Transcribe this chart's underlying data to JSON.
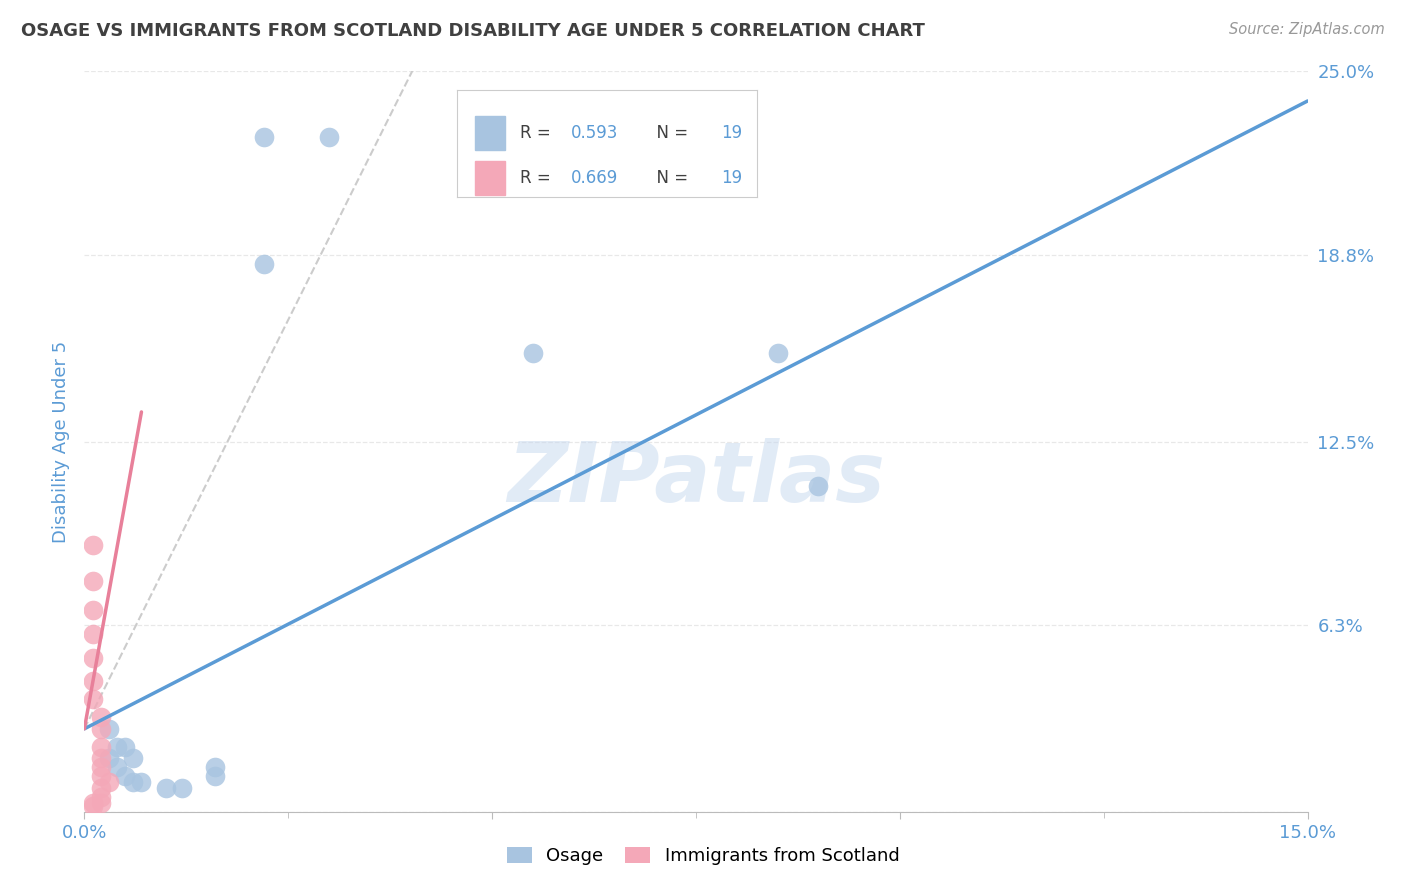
{
  "title": "OSAGE VS IMMIGRANTS FROM SCOTLAND DISABILITY AGE UNDER 5 CORRELATION CHART",
  "source": "Source: ZipAtlas.com",
  "ylabel_label": "Disability Age Under 5",
  "xlim": [
    0.0,
    0.15
  ],
  "ylim": [
    0.0,
    0.25
  ],
  "yticks": [
    0.0,
    0.063,
    0.125,
    0.188,
    0.25
  ],
  "yticklabels": [
    "",
    "6.3%",
    "12.5%",
    "18.8%",
    "25.0%"
  ],
  "xtick_major": [
    0.0,
    0.05,
    0.1,
    0.15
  ],
  "xticklabels": [
    "0.0%",
    "",
    "",
    "15.0%"
  ],
  "osage_scatter": [
    [
      0.022,
      0.228
    ],
    [
      0.03,
      0.228
    ],
    [
      0.022,
      0.185
    ],
    [
      0.003,
      0.028
    ],
    [
      0.004,
      0.022
    ],
    [
      0.005,
      0.022
    ],
    [
      0.006,
      0.018
    ],
    [
      0.003,
      0.018
    ],
    [
      0.004,
      0.015
    ],
    [
      0.005,
      0.012
    ],
    [
      0.006,
      0.01
    ],
    [
      0.007,
      0.01
    ],
    [
      0.01,
      0.008
    ],
    [
      0.012,
      0.008
    ],
    [
      0.016,
      0.015
    ],
    [
      0.016,
      0.012
    ],
    [
      0.055,
      0.155
    ],
    [
      0.085,
      0.155
    ],
    [
      0.09,
      0.11
    ]
  ],
  "scotland_scatter": [
    [
      0.001,
      0.09
    ],
    [
      0.001,
      0.078
    ],
    [
      0.001,
      0.068
    ],
    [
      0.001,
      0.06
    ],
    [
      0.001,
      0.052
    ],
    [
      0.001,
      0.044
    ],
    [
      0.001,
      0.038
    ],
    [
      0.002,
      0.032
    ],
    [
      0.002,
      0.028
    ],
    [
      0.002,
      0.022
    ],
    [
      0.002,
      0.018
    ],
    [
      0.002,
      0.015
    ],
    [
      0.002,
      0.012
    ],
    [
      0.003,
      0.01
    ],
    [
      0.002,
      0.008
    ],
    [
      0.002,
      0.005
    ],
    [
      0.002,
      0.003
    ],
    [
      0.001,
      0.003
    ],
    [
      0.001,
      0.002
    ]
  ],
  "osage_line_x": [
    0.0,
    0.15
  ],
  "osage_line_y": [
    0.028,
    0.24
  ],
  "scotland_line_x": [
    0.0,
    0.007
  ],
  "scotland_line_y": [
    0.028,
    0.135
  ],
  "dashed_line_x": [
    0.0,
    0.042
  ],
  "dashed_line_y": [
    0.028,
    0.26
  ],
  "watermark": "ZIPatlas",
  "background_color": "#ffffff",
  "grid_color": "#e8e8e8",
  "osage_color": "#a8c4e0",
  "scotland_color": "#f4a8b8",
  "osage_line_color": "#5b9bd5",
  "scotland_line_color": "#e8809a",
  "dashed_color": "#cccccc",
  "title_color": "#404040",
  "tick_label_color": "#5b9bd5",
  "source_color": "#999999",
  "legend_osage_patch": "#a8c4e0",
  "legend_scotland_patch": "#f4a8b8",
  "legend_text_color": "#404040",
  "legend_value_color": "#5b9bd5"
}
